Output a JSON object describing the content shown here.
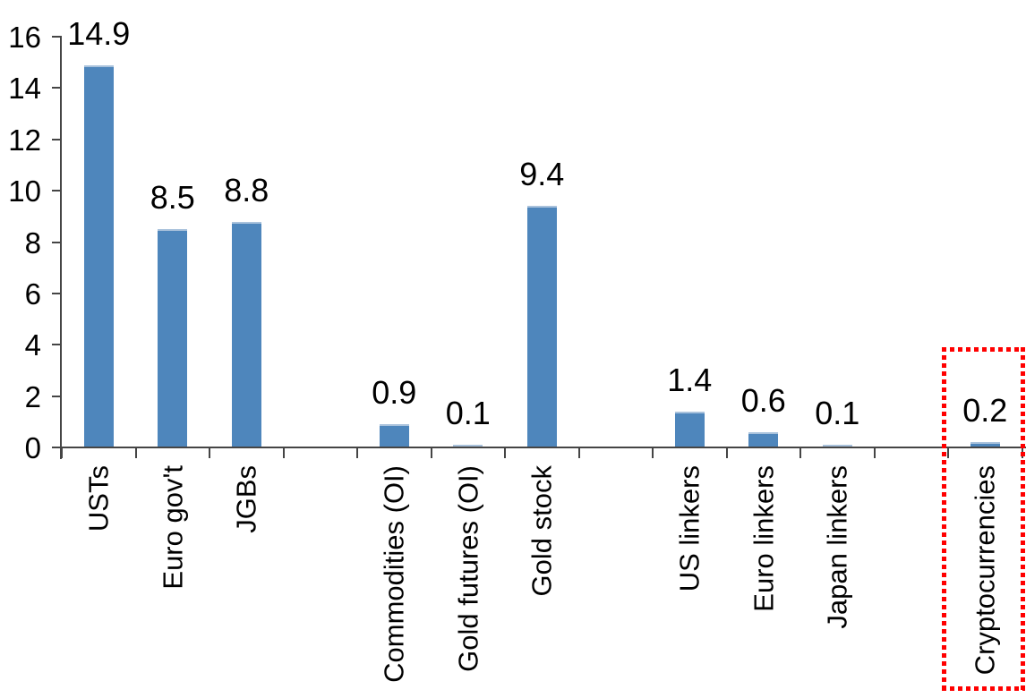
{
  "chart_data": {
    "type": "bar",
    "title": "",
    "xlabel": "",
    "ylabel": "",
    "categories": [
      "USTs",
      "Euro gov't",
      "JGBs",
      "Commodities (OI)",
      "Gold futures (OI)",
      "Gold stock",
      "US linkers",
      "Euro linkers",
      "Japan linkers",
      "Cryptocurrencies"
    ],
    "values": [
      14.9,
      8.5,
      8.8,
      0.9,
      0.1,
      9.4,
      1.4,
      0.6,
      0.1,
      0.2
    ],
    "data_labels": [
      "14.9",
      "8.5",
      "8.8",
      "0.9",
      "0.1",
      "9.4",
      "1.4",
      "0.6",
      "0.1",
      "0.2"
    ],
    "group_gaps_after_index": [
      2,
      5,
      8
    ],
    "yticks": [
      "0",
      "2",
      "4",
      "6",
      "8",
      "10",
      "12",
      "14",
      "16"
    ],
    "ylim": [
      0,
      16
    ],
    "grid": false,
    "legend": "none",
    "bar_color": "#4e86bc",
    "bar_top_edge_color": "#a9c2dc",
    "axis_color": "#454545",
    "text_color": "#000000",
    "highlight": {
      "category": "Cryptocurrencies",
      "shape": "red-dotted-rectangle",
      "color": "#ff0000"
    }
  }
}
